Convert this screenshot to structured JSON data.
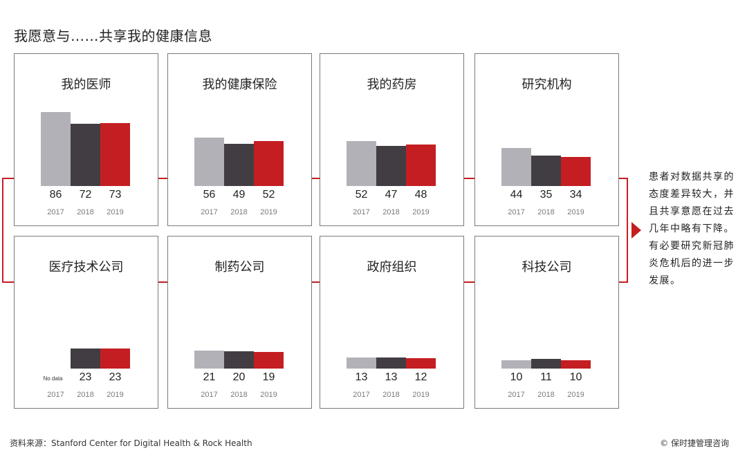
{
  "title": "我愿意与……共享我的健康信息",
  "colors": {
    "2017": "#b3b1b8",
    "2018": "#413d42",
    "2019": "#c41e22",
    "connector": "#c41e22",
    "border": "#7a7a7a"
  },
  "chart_data": {
    "type": "bar",
    "categories": [
      "2017",
      "2018",
      "2019"
    ],
    "ylim": [
      0,
      100
    ],
    "panels": [
      {
        "title": "我的医师",
        "values": [
          86,
          72,
          73
        ]
      },
      {
        "title": "我的健康保险",
        "values": [
          56,
          49,
          52
        ]
      },
      {
        "title": "我的药房",
        "values": [
          52,
          47,
          48
        ]
      },
      {
        "title": "研究机构",
        "values": [
          44,
          35,
          34
        ]
      },
      {
        "title": "医疗技术公司",
        "values": [
          null,
          23,
          23
        ],
        "no_data_label": "No data"
      },
      {
        "title": "制药公司",
        "values": [
          21,
          20,
          19
        ]
      },
      {
        "title": "政府组织",
        "values": [
          13,
          13,
          12
        ]
      },
      {
        "title": "科技公司",
        "values": [
          10,
          11,
          10
        ]
      }
    ]
  },
  "note": "患者对数据共享的态度差异较大，并且共享意愿在过去几年中略有下降。有必要研究新冠肺炎危机后的进一步发展。",
  "source": "资料来源：Stanford Center for Digital Health & Rock Health",
  "copyright": "© 保时捷管理咨询"
}
